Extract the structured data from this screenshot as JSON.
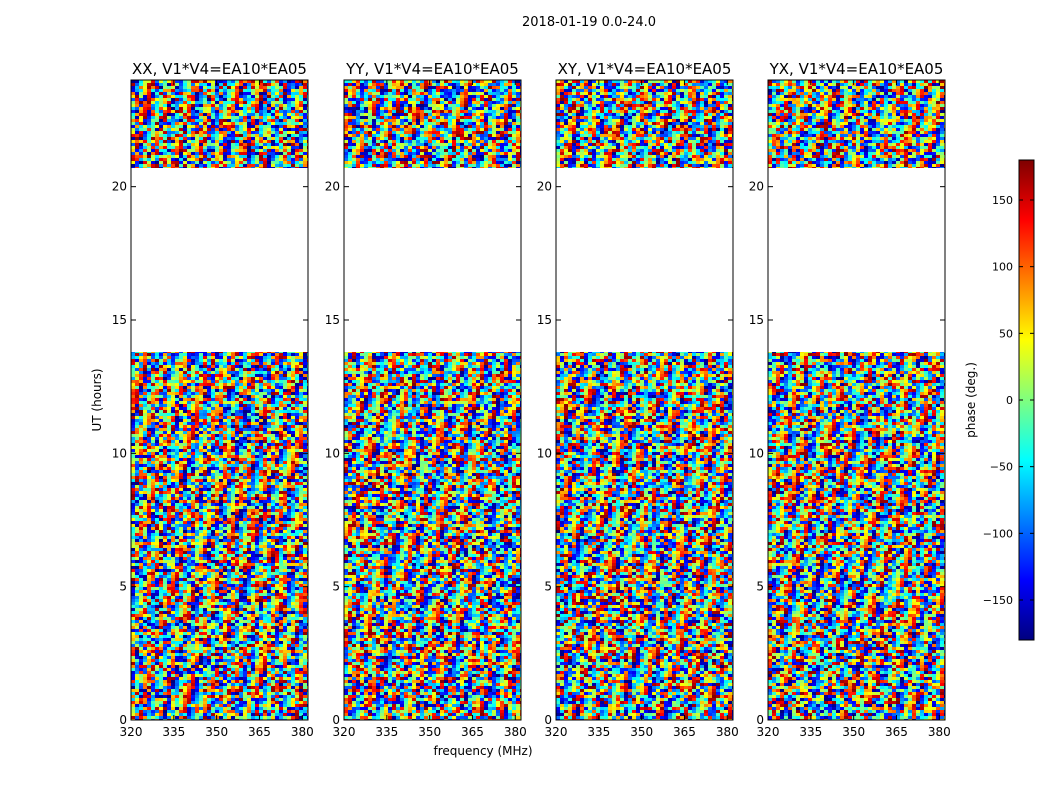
{
  "chart_data": {
    "type": "heatmap",
    "suptitle": "2018-01-19 0.0-24.0",
    "xlabel": "frequency (MHz)",
    "ylabel": "UT (hours)",
    "xlim": [
      320,
      382
    ],
    "ylim": [
      0,
      24
    ],
    "xticks": [
      320,
      335,
      350,
      365,
      380
    ],
    "yticks": [
      0,
      5,
      10,
      15,
      20
    ],
    "panels": [
      {
        "title": "XX, V1*V4=EA10*EA05",
        "pol": "XX"
      },
      {
        "title": "YY, V1*V4=EA10*EA05",
        "pol": "YY"
      },
      {
        "title": "XY, V1*V4=EA10*EA05",
        "pol": "XY"
      },
      {
        "title": "YX, V1*V4=EA10*EA05",
        "pol": "YX"
      }
    ],
    "data_segments_hours": [
      [
        0,
        13.8
      ],
      [
        20.7,
        24
      ]
    ],
    "gap_hours": [
      13.8,
      20.7
    ],
    "colorbar": {
      "label": "phase (deg.)",
      "range": [
        -180,
        180
      ],
      "ticks": [
        -150,
        -100,
        -50,
        0,
        50,
        100,
        150
      ],
      "tick_labels": [
        "−150",
        "−100",
        "−50",
        "0",
        "50",
        "100",
        "150"
      ],
      "colormap": "jet",
      "colors": [
        "#00007f",
        "#0000ff",
        "#007fff",
        "#00ffff",
        "#7fff7f",
        "#ffff00",
        "#ff7f00",
        "#ff0000",
        "#7f0000"
      ]
    }
  }
}
